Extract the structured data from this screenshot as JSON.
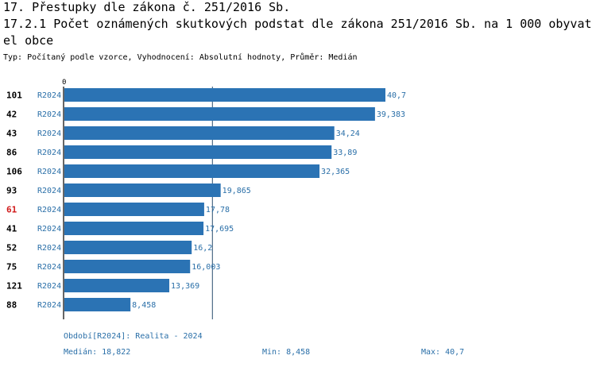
{
  "header": {
    "title": "17. Přestupky dle zákona č. 251/2016 Sb.",
    "subtitle": "17.2.1 Počet oznámených skutkových podstat dle zákona 251/2016 Sb. na 1 000 obyvatel obce",
    "description": "Typ: Počítaný podle vzorce, Vyhodnocení: Absolutní hodnoty, Průměr: Medián"
  },
  "colors": {
    "bar": "#2b73b4",
    "highlight_label": "#d11a1a",
    "value_text": "#2a6fa8",
    "axis": "#000000"
  },
  "chart_data": {
    "type": "bar",
    "orientation": "horizontal",
    "axis_zero_label": "0",
    "xlim": [
      0,
      40.7
    ],
    "categories": [
      "101",
      "42",
      "43",
      "86",
      "106",
      "93",
      "61",
      "41",
      "52",
      "75",
      "121",
      "88"
    ],
    "highlighted": "61",
    "period_labels": [
      "R2024",
      "R2024",
      "R2024",
      "R2024",
      "R2024",
      "R2024",
      "R2024",
      "R2024",
      "R2024",
      "R2024",
      "R2024",
      "R2024"
    ],
    "values": [
      40.7,
      39.383,
      34.24,
      33.89,
      32.365,
      19.865,
      17.78,
      17.695,
      16.2,
      16.003,
      13.369,
      8.458
    ],
    "value_labels": [
      "40,7",
      "39,383",
      "34,24",
      "33,89",
      "32,365",
      "19,865",
      "17,78",
      "17,695",
      "16,2",
      "16,003",
      "13,369",
      "8,458"
    ],
    "median": 18.822
  },
  "footer": {
    "period": "Období[R2024]: Realita - 2024",
    "median": "Medián: 18,822",
    "min": "Min: 8,458",
    "max": "Max: 40,7"
  }
}
